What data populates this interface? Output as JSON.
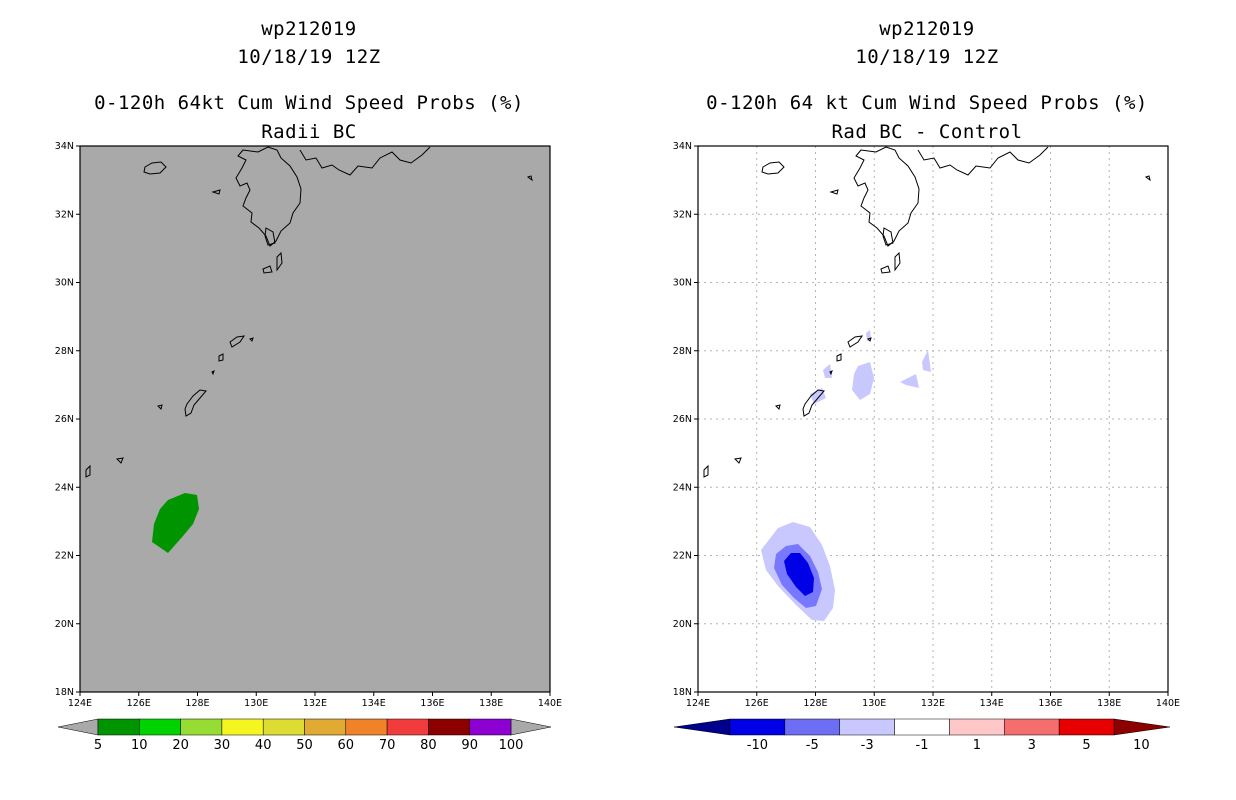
{
  "left_panel": {
    "title_line1": "wp212019",
    "title_line2": "10/18/19 12Z",
    "title_line3": "0-120h 64kt Cum Wind Speed Probs (%)",
    "title_line4": "Radii BC",
    "map_background": "#a9a9a9",
    "probability_area": {
      "color": "#009400",
      "category": "5-10%"
    },
    "colorbar": {
      "colors": [
        "#009400",
        "#00d200",
        "#96dc32",
        "#f5f522",
        "#dcdc32",
        "#e1aa32",
        "#f08228",
        "#f03c3c",
        "#8c0000",
        "#8c00d2"
      ],
      "labels": [
        "5",
        "10",
        "20",
        "30",
        "40",
        "50",
        "60",
        "70",
        "80",
        "90",
        "100"
      ]
    }
  },
  "right_panel": {
    "title_line1": "wp212019",
    "title_line2": "10/18/19 12Z",
    "title_line3": "0-120h 64 kt Cum Wind Speed Probs (%)",
    "title_line4": "Rad BC - Control",
    "map_background": "#ffffff",
    "contour_colors": {
      "minus1_to_minus3": "#c8c8ff",
      "minus3_to_minus5": "#7878ff",
      "minus5_to_minus10": "#0000e6"
    },
    "colorbar": {
      "colors": [
        "#00008c",
        "#0000e6",
        "#6e6ef5",
        "#c8c8ff",
        "#ffffff",
        "#ffc8c8",
        "#f56e6e",
        "#e60000",
        "#8c0000"
      ],
      "labels": [
        "-10",
        "-5",
        "-3",
        "-1",
        "1",
        "3",
        "5",
        "10"
      ]
    }
  },
  "axes": {
    "lon_labels": [
      "124E",
      "126E",
      "128E",
      "130E",
      "132E",
      "134E",
      "136E",
      "138E",
      "140E"
    ],
    "lat_labels": [
      "18N",
      "20N",
      "22N",
      "24N",
      "26N",
      "28N",
      "30N",
      "32N",
      "34N"
    ]
  }
}
